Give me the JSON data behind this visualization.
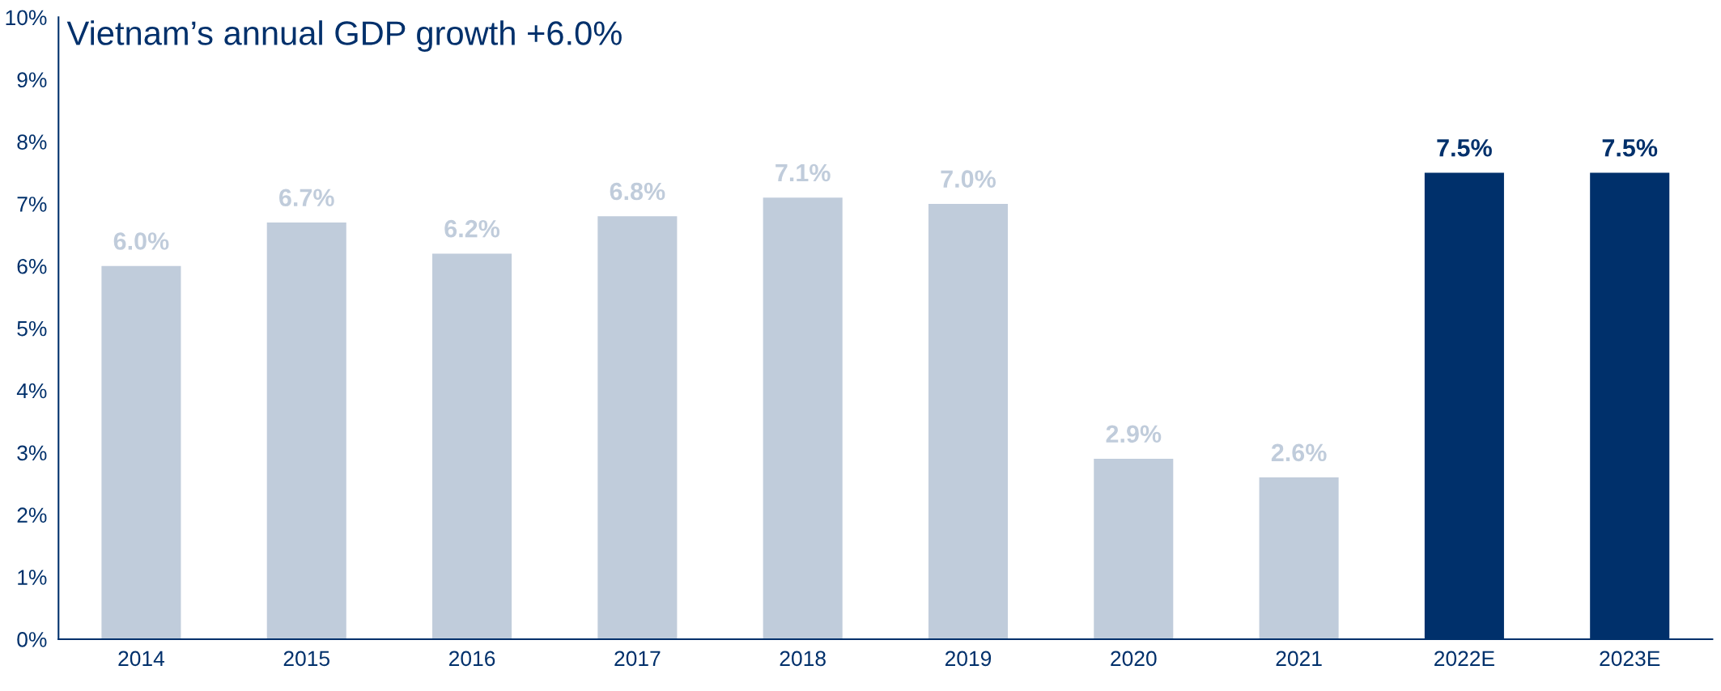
{
  "chart_data": {
    "type": "bar",
    "title": "Vietnam’s annual GDP growth +6.0%",
    "categories": [
      "2014",
      "2015",
      "2016",
      "2017",
      "2018",
      "2019",
      "2020",
      "2021",
      "2022E",
      "2023E"
    ],
    "values": [
      6.0,
      6.7,
      6.2,
      6.8,
      7.1,
      7.0,
      2.9,
      2.6,
      7.5,
      7.5
    ],
    "colors": [
      "#c0ccdb",
      "#c0ccdb",
      "#c0ccdb",
      "#c0ccdb",
      "#c0ccdb",
      "#c0ccdb",
      "#c0ccdb",
      "#c0ccdb",
      "#00306b",
      "#00306b"
    ],
    "value_labels": [
      "6.0%",
      "6.7%",
      "6.2%",
      "6.8%",
      "7.1%",
      "7.0%",
      "2.9%",
      "2.6%",
      "7.5%",
      "7.5%"
    ],
    "ylim": [
      0,
      10
    ],
    "yticks": [
      {
        "value": 0,
        "label": "0%"
      },
      {
        "value": 1,
        "label": "1%"
      },
      {
        "value": 2,
        "label": "2%"
      },
      {
        "value": 3,
        "label": "3%"
      },
      {
        "value": 4,
        "label": "4%"
      },
      {
        "value": 5,
        "label": "5%"
      },
      {
        "value": 6,
        "label": "6%"
      },
      {
        "value": 7,
        "label": "7%"
      },
      {
        "value": 8,
        "label": "8%"
      },
      {
        "value": 9,
        "label": "9%"
      },
      {
        "value": 10,
        "label": "10%"
      }
    ],
    "grid": false,
    "legend": false
  }
}
